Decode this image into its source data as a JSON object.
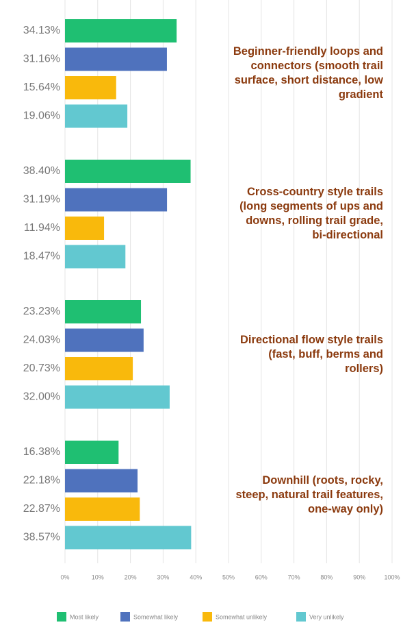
{
  "chart_data": {
    "type": "bar",
    "orientation": "horizontal",
    "categories": [
      "Beginner-friendly loops and connectors (smooth trail surface, short distance, low gradient",
      "Cross-country style trails (long segments of ups and downs, rolling trail grade, bi-directional",
      "Directional flow style trails (fast, buff, berms and rollers)",
      "Downhill (roots, rocky, steep, natural trail features, one-way only)"
    ],
    "series": [
      {
        "name": "Most likely",
        "color": "#1fbf72",
        "values": [
          34.13,
          38.4,
          23.23,
          16.38
        ],
        "value_labels": [
          "34.13%",
          "38.40%",
          "23.23%",
          "16.38%"
        ]
      },
      {
        "name": "Somewhat likely",
        "color": "#4f72bd",
        "values": [
          31.16,
          31.19,
          24.03,
          22.18
        ],
        "value_labels": [
          "31.16%",
          "31.19%",
          "24.03%",
          "22.18%"
        ]
      },
      {
        "name": "Somewhat unlikely",
        "color": "#f9b90c",
        "values": [
          15.64,
          11.94,
          20.73,
          22.87
        ],
        "value_labels": [
          "15.64%",
          "11.94%",
          "20.73%",
          "22.87%"
        ]
      },
      {
        "name": "Very unlikely",
        "color": "#62c8d0",
        "values": [
          19.06,
          18.47,
          32.0,
          38.57
        ],
        "value_labels": [
          "19.06%",
          "18.47%",
          "32.00%",
          "38.57%"
        ]
      }
    ],
    "xlim": [
      0,
      100
    ],
    "xticks": [
      {
        "value": 0,
        "label": "0%"
      },
      {
        "value": 10,
        "label": "10%"
      },
      {
        "value": 20,
        "label": "20%"
      },
      {
        "value": 30,
        "label": "30%"
      },
      {
        "value": 40,
        "label": "40%"
      },
      {
        "value": 50,
        "label": "50%"
      },
      {
        "value": 60,
        "label": "60%"
      },
      {
        "value": 70,
        "label": "70%"
      },
      {
        "value": 80,
        "label": "80%"
      },
      {
        "value": 90,
        "label": "90%"
      },
      {
        "value": 100,
        "label": "100%"
      }
    ],
    "grid": true,
    "legend": "bottom"
  }
}
